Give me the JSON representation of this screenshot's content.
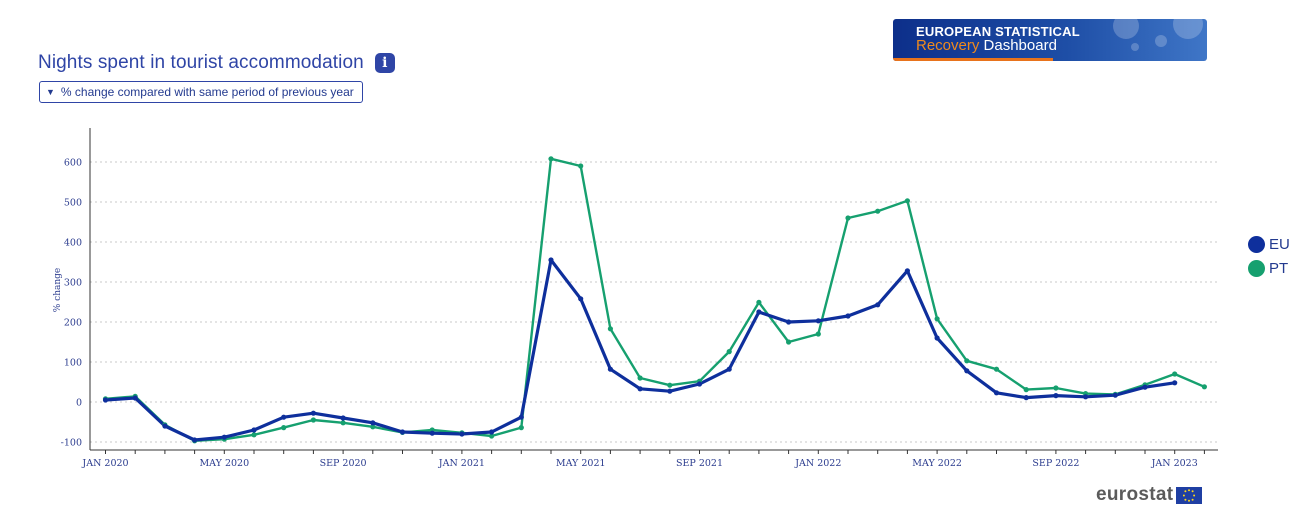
{
  "header": {
    "title": "Nights spent in tourist accommodation",
    "info_icon": "info-icon",
    "measure_selector": "% change compared with same period of previous year",
    "dropdown_icon": "caret-down-icon"
  },
  "banner": {
    "line1": "EUROPEAN STATISTICAL",
    "line2_accent": "Recovery",
    "line2_rest": " Dashboard"
  },
  "legend": [
    {
      "label": "EU",
      "color": "#0e2f9c"
    },
    {
      "label": "PT",
      "color": "#16a06f"
    }
  ],
  "footer": {
    "brand": "eurostat"
  },
  "chart_data": {
    "type": "line",
    "ylabel": "% change",
    "xlabel": "",
    "ylim": [
      -110,
      690
    ],
    "yticks": [
      -100,
      0,
      100,
      200,
      300,
      400,
      500,
      600
    ],
    "grid": true,
    "legend_position": "right",
    "x_tick_labels": [
      "JAN 2020",
      "MAY 2020",
      "SEP 2020",
      "JAN 2021",
      "MAY 2021",
      "SEP 2021",
      "JAN 2022",
      "MAY 2022",
      "SEP 2022",
      "JAN 2023"
    ],
    "x": [
      "2020-01",
      "2020-02",
      "2020-03",
      "2020-04",
      "2020-05",
      "2020-06",
      "2020-07",
      "2020-08",
      "2020-09",
      "2020-10",
      "2020-11",
      "2020-12",
      "2021-01",
      "2021-02",
      "2021-03",
      "2021-04",
      "2021-05",
      "2021-06",
      "2021-07",
      "2021-08",
      "2021-09",
      "2021-10",
      "2021-11",
      "2021-12",
      "2022-01",
      "2022-02",
      "2022-03",
      "2022-04",
      "2022-05",
      "2022-06",
      "2022-07",
      "2022-08",
      "2022-09",
      "2022-10",
      "2022-11",
      "2022-12",
      "2023-01",
      "2023-02"
    ],
    "series": [
      {
        "name": "EU",
        "color": "#0e2f9c",
        "values": [
          5,
          10,
          -60,
          -95,
          -88,
          -70,
          -38,
          -28,
          -40,
          -52,
          -75,
          -78,
          -80,
          -75,
          -38,
          355,
          258,
          82,
          33,
          27,
          45,
          82,
          225,
          200,
          203,
          215,
          243,
          328,
          160,
          78,
          23,
          11,
          16,
          13,
          17,
          37,
          48,
          null
        ]
      },
      {
        "name": "PT",
        "color": "#16a06f",
        "values": [
          8,
          14,
          -57,
          -97,
          -93,
          -82,
          -64,
          -45,
          -52,
          -62,
          -76,
          -70,
          -77,
          -85,
          -64,
          608,
          590,
          183,
          60,
          42,
          52,
          126,
          249,
          150,
          170,
          460,
          477,
          503,
          208,
          103,
          82,
          31,
          35,
          21,
          19,
          43,
          70,
          38
        ]
      }
    ]
  }
}
